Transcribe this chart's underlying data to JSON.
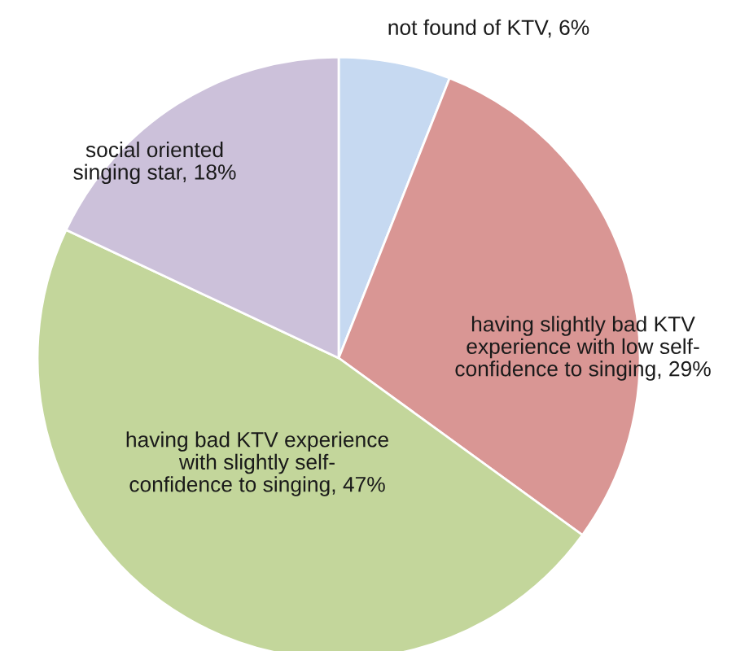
{
  "chart_data": {
    "type": "pie",
    "categories": [
      "not found of KTV",
      "having slightly bad KTV experience with low self-confidence to singing",
      "having bad KTV experience with slightly self-confidence to singing",
      "social oriented singing star"
    ],
    "values": [
      6,
      29,
      47,
      18
    ],
    "value_labels": [
      "6%",
      "29%",
      "47%",
      "18%"
    ],
    "colors": [
      "#c6d9f1",
      "#d99694",
      "#c3d69b",
      "#ccc1da"
    ],
    "legend": false
  }
}
